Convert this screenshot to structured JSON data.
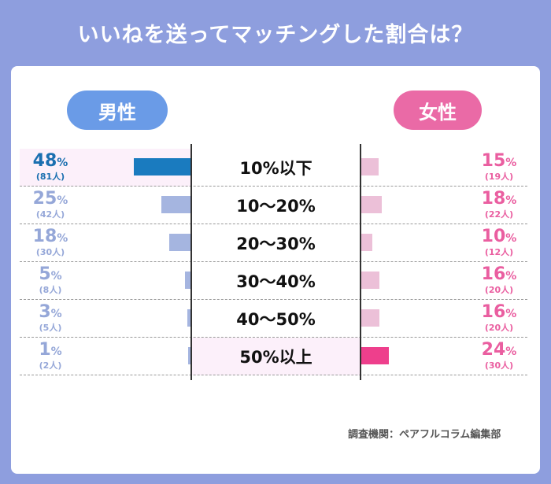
{
  "title": "いいねを送ってマッチングした割合は？",
  "male_label": "男性",
  "female_label": "女性",
  "source": "調査機関：ペアフルコラム編集部",
  "colors": {
    "male_highlight": "#1a7bbf",
    "male_normal": "#a5b5e0",
    "female_highlight": "#ee3f8c",
    "female_normal": "#ecc0d8",
    "male_highlight_text": "#1a6fb0",
    "male_normal_text": "#95a7d8",
    "female_text": "#ea5ea0"
  },
  "chart_data": {
    "type": "bar",
    "title": "いいねを送ってマッチングした割合は？",
    "categories": [
      "10%以下",
      "10～20%",
      "20～30%",
      "30～40%",
      "40～50%",
      "50%以上"
    ],
    "series": [
      {
        "name": "男性",
        "values": [
          48,
          25,
          18,
          5,
          3,
          1
        ],
        "counts": [
          "(81人)",
          "(42人)",
          "(30人)",
          "(8人)",
          "(5人)",
          "(2人)"
        ],
        "highlight_index": 0
      },
      {
        "name": "女性",
        "values": [
          15,
          18,
          10,
          16,
          16,
          24
        ],
        "counts": [
          "(19人)",
          "(22人)",
          "(12人)",
          "(20人)",
          "(20人)",
          "(30人)"
        ],
        "highlight_index": 5
      }
    ],
    "percent_symbol": "%",
    "xlim": [
      0,
      50
    ]
  }
}
